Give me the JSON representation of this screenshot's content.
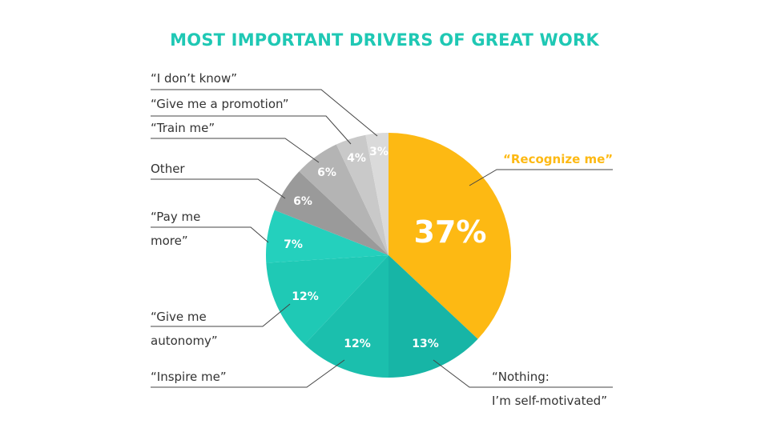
{
  "chart_data": {
    "type": "pie",
    "title": "MOST IMPORTANT DRIVERS OF GREAT WORK",
    "slices": [
      {
        "label": "“Recognize me”",
        "label_lines": [
          "“Recognize me”"
        ],
        "value": 37,
        "value_label": "37%",
        "color": "#FDB913"
      },
      {
        "label": "“Nothing: I’m self-motivated”",
        "label_lines": [
          "“Nothing:",
          "I’m self-motivated”"
        ],
        "value": 13,
        "value_label": "13%",
        "color": "#17B5A6"
      },
      {
        "label": "“Inspire me”",
        "label_lines": [
          "“Inspire me”"
        ],
        "value": 12,
        "value_label": "12%",
        "color": "#1BBFAD"
      },
      {
        "label": "“Give me autonomy”",
        "label_lines": [
          "“Give me",
          "autonomy”"
        ],
        "value": 12,
        "value_label": "12%",
        "color": "#1FC9B5"
      },
      {
        "label": "“Pay me more”",
        "label_lines": [
          "“Pay me",
          "more”"
        ],
        "value": 7,
        "value_label": "7%",
        "color": "#24D0BD"
      },
      {
        "label": "Other",
        "label_lines": [
          "Other"
        ],
        "value": 6,
        "value_label": "6%",
        "color": "#9A9A9A"
      },
      {
        "label": "“Train me”",
        "label_lines": [
          "“Train me”"
        ],
        "value": 6,
        "value_label": "6%",
        "color": "#B4B4B4"
      },
      {
        "label": "“Give me a promotion”",
        "label_lines": [
          "“Give me a promotion”"
        ],
        "value": 4,
        "value_label": "4%",
        "color": "#C9C9C9"
      },
      {
        "label": "“I don’t know”",
        "label_lines": [
          "“I don’t know”"
        ],
        "value": 3,
        "value_label": "3%",
        "color": "#DADADA"
      }
    ],
    "start": "top",
    "direction": "clockwise",
    "legend": "none"
  }
}
